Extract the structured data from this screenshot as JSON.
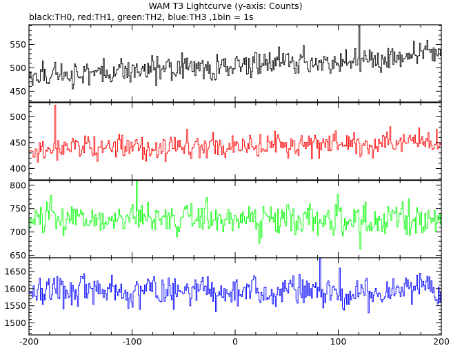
{
  "chart_data": {
    "type": "line",
    "title": "WAM T3 Lightcurve (y-axis: Counts)",
    "subtitle": "black:TH0, red:TH1, green:TH2, blue:TH3 ,1bin = 1s",
    "xlabel": "",
    "ylabel": "",
    "xlim": [
      -200,
      200
    ],
    "x_ticks": [
      -200,
      -100,
      0,
      100,
      200
    ],
    "x_start": -200,
    "x_end": 200,
    "bin_seconds": 1,
    "grid": false,
    "panels": [
      {
        "series_name": "TH0",
        "color": "#000000",
        "ylim": [
          427,
          592
        ],
        "y_ticks": [
          450,
          500,
          550
        ],
        "mean": 505,
        "trend": 22,
        "noise_sd": 21,
        "max": 592,
        "max_at": 120,
        "min": 430
      },
      {
        "series_name": "TH1",
        "color": "#ff0000",
        "ylim": [
          378,
          527
        ],
        "y_ticks": [
          400,
          450,
          500
        ],
        "mean": 445,
        "trend": 8,
        "noise_sd": 19,
        "max": 522,
        "max_at": -175,
        "min": 380
      },
      {
        "series_name": "TH2",
        "color": "#00ff00",
        "ylim": [
          645,
          810
        ],
        "y_ticks": [
          650,
          700,
          750,
          800
        ],
        "mean": 728,
        "trend": 0,
        "noise_sd": 27,
        "max": 808,
        "max_at": -96,
        "min": 648
      },
      {
        "series_name": "TH3",
        "color": "#0000ff",
        "ylim": [
          1465,
          1690
        ],
        "y_ticks": [
          1500,
          1550,
          1600,
          1650
        ],
        "mean": 1590,
        "trend": 0,
        "noise_sd": 35,
        "max": 1688,
        "max_at": 82,
        "min": 1467
      }
    ]
  }
}
